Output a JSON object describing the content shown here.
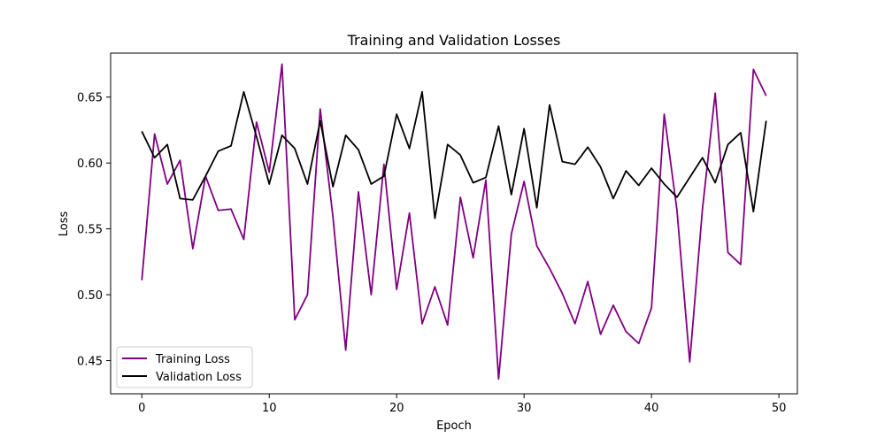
{
  "colors": {
    "training": "#800080",
    "validation": "#000000",
    "frame": "#000000",
    "background": "#ffffff"
  },
  "chart_data": {
    "type": "line",
    "title": "Training and Validation Losses",
    "xlabel": "Epoch",
    "ylabel": "Loss",
    "xlim": [
      -2.45,
      51.45
    ],
    "ylim": [
      0.4248,
      0.6834
    ],
    "xticks": [
      0,
      10,
      20,
      30,
      40,
      50
    ],
    "xtick_labels": [
      "0",
      "10",
      "20",
      "30",
      "40",
      "50"
    ],
    "yticks": [
      0.45,
      0.5,
      0.55,
      0.6,
      0.65
    ],
    "ytick_labels": [
      "0.45",
      "0.50",
      "0.55",
      "0.60",
      "0.65"
    ],
    "grid": false,
    "legend_position": "lower-left",
    "x": [
      0,
      1,
      2,
      3,
      4,
      5,
      6,
      7,
      8,
      9,
      10,
      11,
      12,
      13,
      14,
      15,
      16,
      17,
      18,
      19,
      20,
      21,
      22,
      23,
      24,
      25,
      26,
      27,
      28,
      29,
      30,
      31,
      32,
      33,
      34,
      35,
      36,
      37,
      38,
      39,
      40,
      41,
      42,
      43,
      44,
      45,
      46,
      47,
      48,
      49
    ],
    "series": [
      {
        "name": "Training Loss",
        "color": "#800080",
        "values": [
          0.511,
          0.622,
          0.584,
          0.602,
          0.535,
          0.59,
          0.564,
          0.565,
          0.542,
          0.631,
          0.593,
          0.675,
          0.481,
          0.5,
          0.641,
          0.559,
          0.458,
          0.578,
          0.5,
          0.599,
          0.504,
          0.562,
          0.478,
          0.506,
          0.477,
          0.574,
          0.528,
          0.587,
          0.436,
          0.546,
          0.586,
          0.537,
          0.52,
          0.501,
          0.478,
          0.51,
          0.47,
          0.492,
          0.472,
          0.463,
          0.49,
          0.637,
          0.564,
          0.449,
          0.565,
          0.653,
          0.532,
          0.523,
          0.671,
          0.651
        ]
      },
      {
        "name": "Validation Loss",
        "color": "#000000",
        "values": [
          0.624,
          0.604,
          0.614,
          0.573,
          0.572,
          0.59,
          0.609,
          0.613,
          0.654,
          0.62,
          0.584,
          0.621,
          0.611,
          0.584,
          0.632,
          0.582,
          0.621,
          0.61,
          0.584,
          0.59,
          0.637,
          0.611,
          0.654,
          0.558,
          0.614,
          0.606,
          0.585,
          0.589,
          0.628,
          0.576,
          0.626,
          0.566,
          0.644,
          0.601,
          0.599,
          0.612,
          0.597,
          0.573,
          0.594,
          0.583,
          0.596,
          0.584,
          0.574,
          0.589,
          0.604,
          0.585,
          0.614,
          0.623,
          0.563,
          0.632
        ]
      }
    ]
  }
}
